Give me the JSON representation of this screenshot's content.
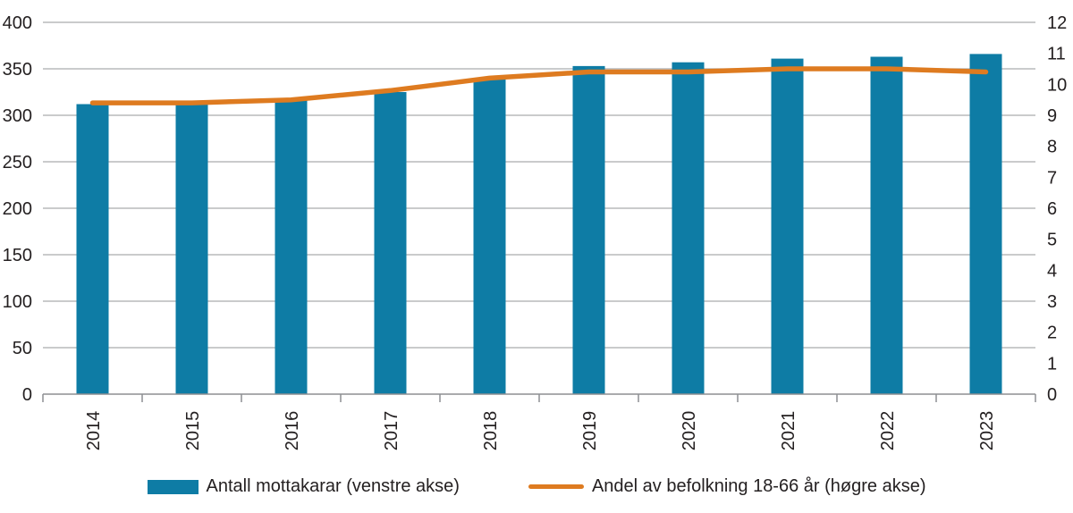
{
  "chart_data": {
    "type": "bar",
    "combo": "bar with overlaid line, dual y-axes",
    "title": "",
    "xlabel": "",
    "ylabel_left": "",
    "ylabel_right": "",
    "categories": [
      "2014",
      "2015",
      "2016",
      "2017",
      "2018",
      "2019",
      "2020",
      "2021",
      "2022",
      "2023"
    ],
    "series": [
      {
        "name": "Antall mottakarar (venstre akse)",
        "type": "bar",
        "axis": "left",
        "color": "#0e7ca5",
        "values": [
          312,
          312,
          316,
          325,
          339,
          353,
          357,
          361,
          363,
          366
        ]
      },
      {
        "name": "Andel av befolkning 18-66 år (høgre akse)",
        "type": "line",
        "axis": "right",
        "color": "#de7b20",
        "values": [
          9.4,
          9.4,
          9.5,
          9.8,
          10.2,
          10.4,
          10.4,
          10.5,
          10.5,
          10.4
        ]
      }
    ],
    "left_axis": {
      "min": 0,
      "max": 400,
      "step": 50,
      "tick_labels": [
        "0",
        "50",
        "100",
        "150",
        "200",
        "250",
        "300",
        "350",
        "400"
      ]
    },
    "right_axis": {
      "min": 0,
      "max": 12,
      "step": 1,
      "tick_labels": [
        "0",
        "1",
        "2",
        "3",
        "4",
        "5",
        "6",
        "7",
        "8",
        "9",
        "10",
        "11",
        "12"
      ]
    },
    "grid": "horizontal",
    "legend_position": "bottom",
    "colors": {
      "gridline": "#aaacae",
      "axis_line": "#8d8f92",
      "text": "#242021",
      "background": "#ffffff"
    }
  },
  "legend": {
    "items": [
      {
        "label": "Antall mottakarar (venstre akse)",
        "swatch": "bar",
        "color": "#0e7ca5"
      },
      {
        "label": "Andel av befolkning 18-66 år (høgre akse)",
        "swatch": "line",
        "color": "#de7b20"
      }
    ]
  }
}
